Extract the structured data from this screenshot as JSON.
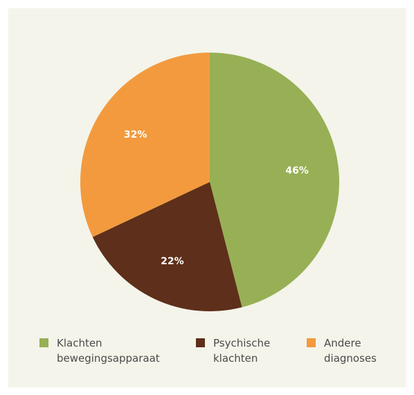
{
  "chart_data": {
    "type": "pie",
    "categories": [
      "Klachten bewegingsapparaat",
      "Psychische klachten",
      "Andere diagnoses"
    ],
    "values": [
      46,
      22,
      32
    ],
    "value_labels": [
      "46%",
      "22%",
      "32%"
    ],
    "colors": [
      "#97b055",
      "#5e2f1a",
      "#f39a3e"
    ]
  }
}
